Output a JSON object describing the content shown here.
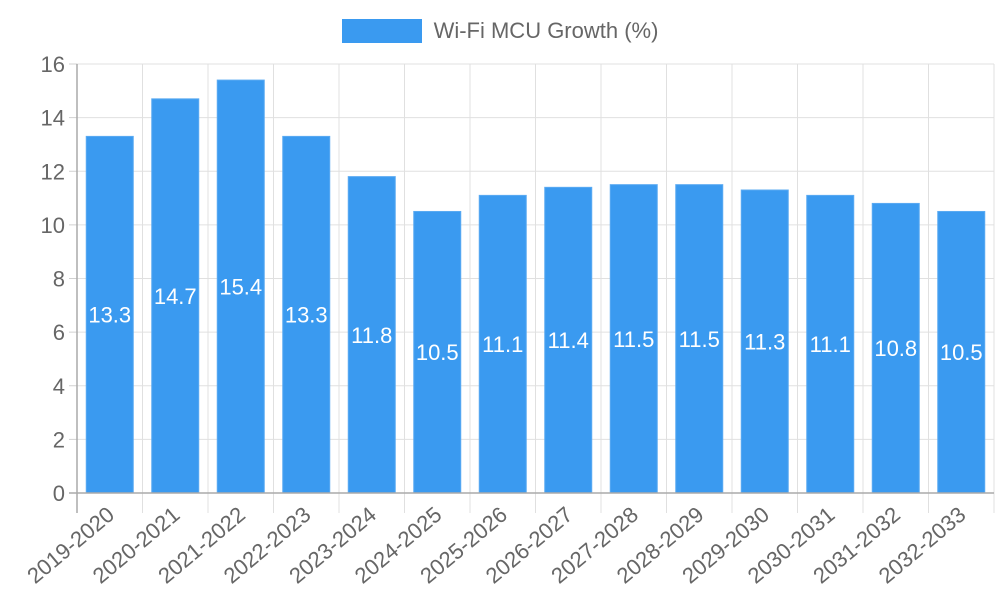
{
  "chart_data": {
    "type": "bar",
    "title": "",
    "xlabel": "",
    "ylabel": "",
    "ylim": [
      0,
      16
    ],
    "yticks": [
      0,
      2,
      4,
      6,
      8,
      10,
      12,
      14,
      16
    ],
    "grid": true,
    "legend_position": "top",
    "categories": [
      "2019-2020",
      "2020-2021",
      "2021-2022",
      "2022-2023",
      "2023-2024",
      "2024-2025",
      "2025-2026",
      "2026-2027",
      "2027-2028",
      "2028-2029",
      "2029-2030",
      "2030-2031",
      "2031-2032",
      "2032-2033"
    ],
    "series": [
      {
        "name": "Wi-Fi MCU Growth (%)",
        "color": "#3a9af0",
        "values": [
          13.3,
          14.7,
          15.4,
          13.3,
          11.8,
          10.5,
          11.1,
          11.4,
          11.5,
          11.5,
          11.3,
          11.1,
          10.8,
          10.5
        ]
      }
    ]
  },
  "legend": {
    "label": "Wi-Fi MCU Growth (%)"
  }
}
